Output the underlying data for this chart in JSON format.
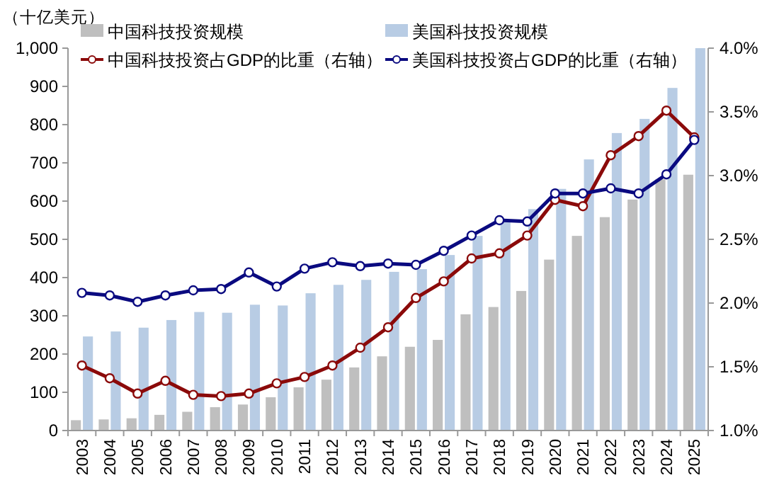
{
  "chart_data": {
    "type": "bar",
    "ylabel": "（十亿美元）",
    "categories": [
      "2003",
      "2004",
      "2005",
      "2006",
      "2007",
      "2008",
      "2009",
      "2010",
      "2011",
      "2012",
      "2013",
      "2014",
      "2015",
      "2016",
      "2017",
      "2018",
      "2019",
      "2020",
      "2021",
      "2022",
      "2023",
      "2024",
      "2025"
    ],
    "series": [
      {
        "name": "中国科技投资规模",
        "color": "#bfbfbf",
        "values": [
          27,
          29,
          32,
          41,
          49,
          61,
          68,
          87,
          113,
          133,
          165,
          194,
          219,
          237,
          304,
          323,
          365,
          447,
          509,
          558,
          604,
          657,
          669
        ]
      },
      {
        "name": "美国科技投资规模",
        "color": "#b8cce4",
        "values": [
          246,
          259,
          269,
          289,
          310,
          308,
          329,
          327,
          359,
          381,
          394,
          415,
          422,
          459,
          509,
          546,
          579,
          632,
          709,
          778,
          815,
          896,
          1000
        ]
      },
      {
        "name": "中国科技投资占GDP的比重（右轴）",
        "type": "line",
        "axis": "y2",
        "color": "#8b0a0a",
        "values": [
          1.51,
          1.41,
          1.29,
          1.39,
          1.28,
          1.27,
          1.29,
          1.37,
          1.42,
          1.51,
          1.65,
          1.81,
          2.04,
          2.17,
          2.35,
          2.39,
          2.53,
          2.81,
          2.76,
          3.16,
          3.31,
          3.51,
          3.3
        ]
      },
      {
        "name": "美国科技投资占GDP的比重（右轴）",
        "type": "line",
        "axis": "y2",
        "color": "#0a0a80",
        "values": [
          2.08,
          2.06,
          2.01,
          2.06,
          2.1,
          2.11,
          2.24,
          2.13,
          2.27,
          2.32,
          2.29,
          2.31,
          2.3,
          2.41,
          2.53,
          2.65,
          2.64,
          2.86,
          2.86,
          2.9,
          2.86,
          3.01,
          3.28
        ]
      }
    ],
    "ylim": [
      0,
      1000
    ],
    "yticks": [
      0,
      100,
      200,
      300,
      400,
      500,
      600,
      700,
      800,
      900,
      {
        "value": 1000,
        "label": "1,000"
      }
    ],
    "y2lim": [
      1.0,
      4.0
    ],
    "y2ticks": [
      {
        "value": 1.0,
        "label": "1.0%"
      },
      {
        "value": 1.5,
        "label": "1.5%"
      },
      {
        "value": 2.0,
        "label": "2.0%"
      },
      {
        "value": 2.5,
        "label": "2.5%"
      },
      {
        "value": 3.0,
        "label": "3.0%"
      },
      {
        "value": 3.5,
        "label": "3.5%"
      },
      {
        "value": 4.0,
        "label": "4.0%"
      }
    ],
    "legend": "top",
    "marker": "circle",
    "grid": false
  }
}
